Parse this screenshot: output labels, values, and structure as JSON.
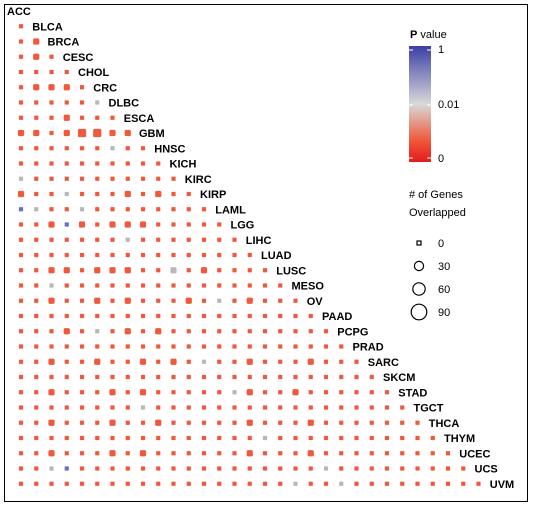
{
  "chart_data": {
    "type": "heatmap",
    "layout": "lower-triangular",
    "cancer_types": [
      "ACC",
      "BLCA",
      "BRCA",
      "CESC",
      "CHOL",
      "CRC",
      "DLBC",
      "ESCA",
      "GBM",
      "HNSC",
      "KICH",
      "KIRC",
      "KIRP",
      "LAML",
      "LGG",
      "LIHC",
      "LUAD",
      "LUSC",
      "MESO",
      "OV",
      "PAAD",
      "PCPG",
      "PRAD",
      "SARC",
      "SKCM",
      "STAD",
      "TGCT",
      "THCA",
      "THYM",
      "UCEC",
      "UCS",
      "UVM"
    ],
    "overlap_levels": [
      "",
      "1",
      "12",
      "121",
      "1111",
      "12221",
      "111111",
      "1112111",
      "22123322",
      "111111111",
      "1111111111",
      "11111111111",
      "211111121211",
      "1111111111111",
      "11212122211111",
      "111111111111111",
      "1111111111111111",
      "11221222112121111",
      "111111111111111111",
      "1121121211121112111",
      "11111111111111111111",
      "111211121211111111111",
      "1111111111111111111111",
      "11211211212111121112111",
      "111111111111111111111111",
      "1121112121111112112111111",
      "11111111111111111111111111",
      "112111211211111211121111111",
      "1111111111111111111111111111",
      "11211121211111121112111111111",
      "111111111111111111111111111111",
      "1111111111111111111111111111111"
    ],
    "non_significant_cells": [
      [
        6,
        5
      ],
      [
        9,
        6
      ],
      [
        11,
        0
      ],
      [
        12,
        3
      ],
      [
        13,
        4
      ],
      [
        15,
        7
      ],
      [
        17,
        10
      ],
      [
        18,
        2
      ],
      [
        19,
        13
      ],
      [
        21,
        5
      ],
      [
        23,
        12
      ],
      [
        25,
        14
      ],
      [
        26,
        8
      ],
      [
        28,
        16
      ],
      [
        30,
        2
      ],
      [
        30,
        20
      ],
      [
        31,
        21
      ],
      [
        31,
        18
      ],
      [
        13,
        1
      ]
    ],
    "high_p_cells": [
      [
        14,
        3
      ],
      [
        30,
        3
      ],
      [
        13,
        0
      ]
    ],
    "legend_p": {
      "title_bold": "P",
      "title_rest": " value",
      "ticks": [
        "1",
        "0.01",
        "0"
      ],
      "colors": [
        "#3b3fa6",
        "#d9d9d9",
        "#ef5638",
        "#e41a1c"
      ]
    },
    "legend_genes": {
      "title_line1": "# of Genes",
      "title_line2": "Overlapped",
      "levels": [
        {
          "label": "0",
          "value": 0
        },
        {
          "label": "30",
          "value": 30
        },
        {
          "label": "60",
          "value": 60
        },
        {
          "label": "90",
          "value": 90
        }
      ]
    }
  }
}
